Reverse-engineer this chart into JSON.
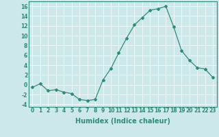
{
  "x": [
    0,
    1,
    2,
    3,
    4,
    5,
    6,
    7,
    8,
    9,
    10,
    11,
    12,
    13,
    14,
    15,
    16,
    17,
    18,
    19,
    20,
    21,
    22,
    23
  ],
  "y": [
    -0.5,
    0.2,
    -1.2,
    -1.0,
    -1.5,
    -1.8,
    -3.0,
    -3.2,
    -3.0,
    1.0,
    3.3,
    6.5,
    9.5,
    12.2,
    13.7,
    15.2,
    15.5,
    16.0,
    11.8,
    7.0,
    5.0,
    3.5,
    3.2,
    1.5
  ],
  "line_color": "#2e8b7a",
  "marker": "D",
  "markersize": 2.0,
  "linewidth": 0.9,
  "xlabel": "Humidex (Indice chaleur)",
  "xlabel_fontsize": 7,
  "xlabel_weight": "bold",
  "ylim": [
    -4.5,
    17.0
  ],
  "xlim": [
    -0.5,
    23.5
  ],
  "yticks": [
    -4,
    -2,
    0,
    2,
    4,
    6,
    8,
    10,
    12,
    14,
    16
  ],
  "xticks": [
    0,
    1,
    2,
    3,
    4,
    5,
    6,
    7,
    8,
    9,
    10,
    11,
    12,
    13,
    14,
    15,
    16,
    17,
    18,
    19,
    20,
    21,
    22,
    23
  ],
  "xtick_labels": [
    "0",
    "1",
    "2",
    "3",
    "4",
    "5",
    "6",
    "7",
    "8",
    "9",
    "10",
    "11",
    "12",
    "13",
    "14",
    "15",
    "16",
    "17",
    "18",
    "19",
    "20",
    "21",
    "22",
    "23"
  ],
  "background_color": "#cde8e8",
  "grid_color": "#ffffff",
  "tick_color": "#2e8b7a",
  "tick_fontsize": 5.5,
  "tick_weight": "bold"
}
